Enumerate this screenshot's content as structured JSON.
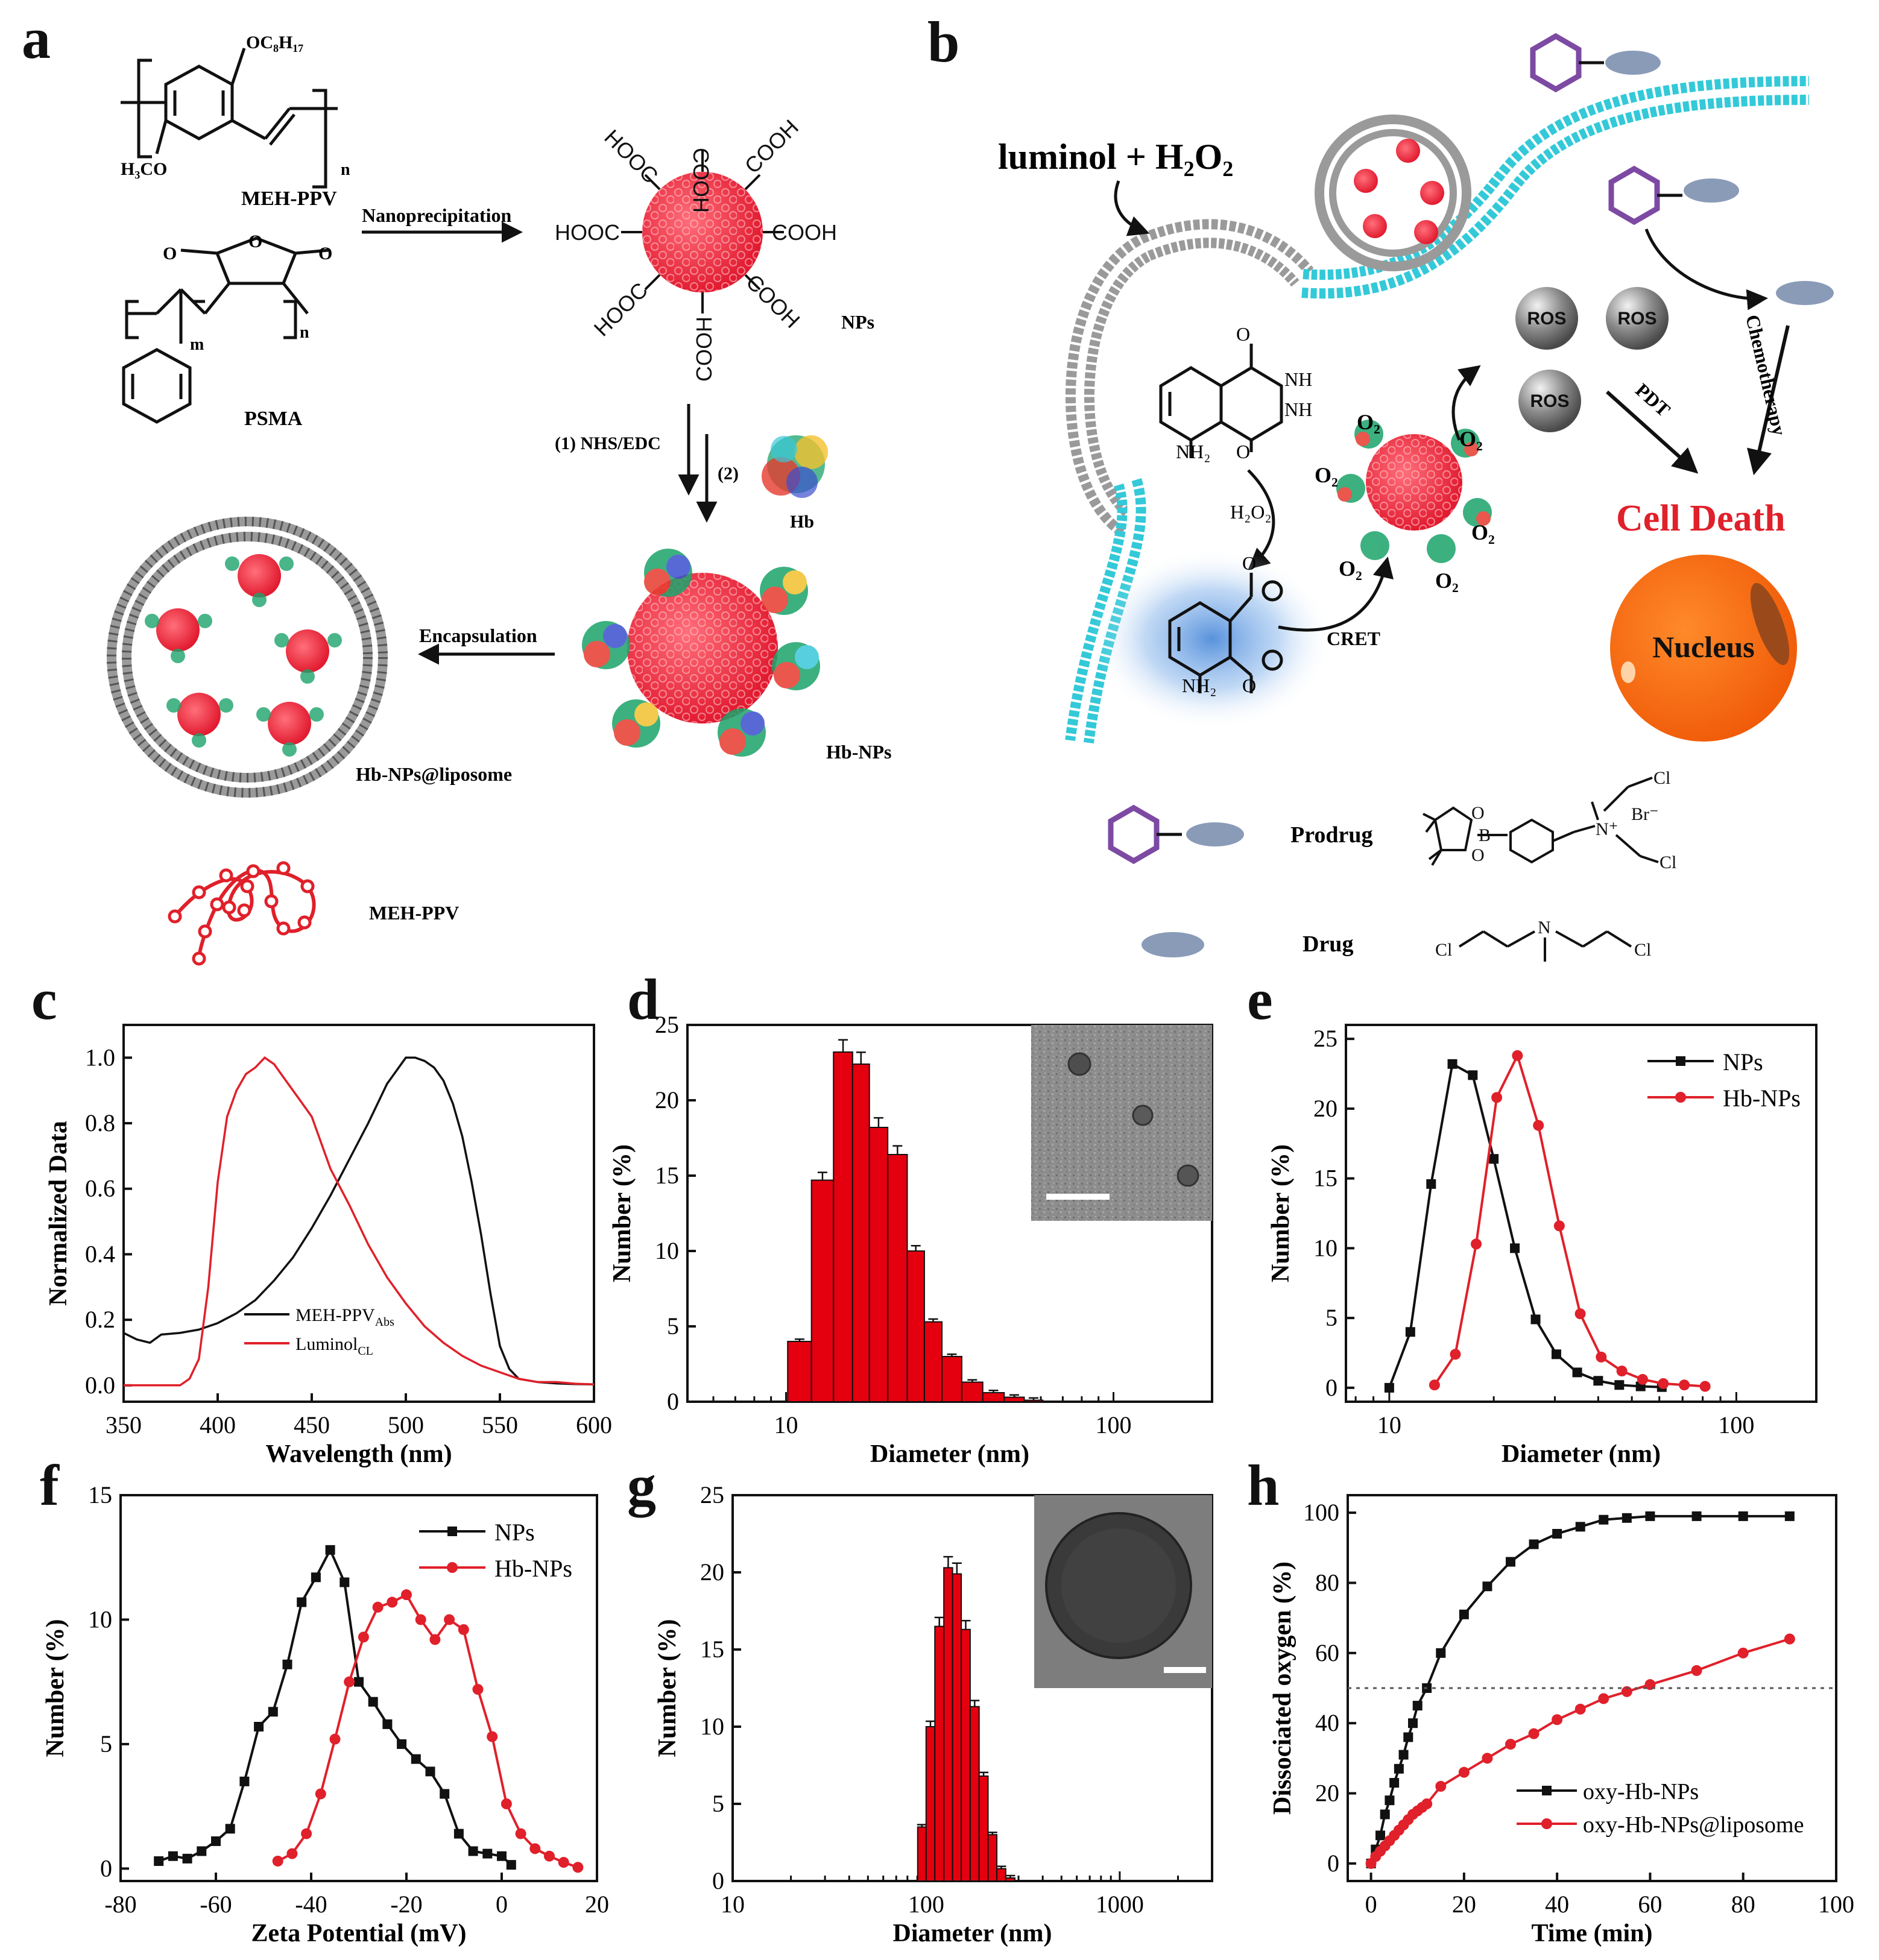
{
  "panel_letters": {
    "a": "a",
    "b": "b",
    "c": "c",
    "d": "d",
    "e": "e",
    "f": "f",
    "g": "g",
    "h": "h"
  },
  "colors": {
    "red": "#e8202a",
    "bar_red": "#e4000f",
    "black": "#111111",
    "cyan": "#33c9d8",
    "orange": "#f26b12",
    "grey": "#9a9a9a",
    "ros": "#7a7a7a",
    "purple": "#7d4aa3",
    "drug": "#8a9bb8",
    "label_red": "#e0202a"
  },
  "panel_a": {
    "meh_ppv_label": "MEH-PPV",
    "oc8h17": "OC₈H₁₇",
    "h3co": "H₃CO",
    "n_sub": "n",
    "m_sub": "m",
    "psma_label": "PSMA",
    "nanoprecipitation": "Nanoprecipitation",
    "cooh": "COOH",
    "hooc": "HOOC",
    "nps_label": "NPs",
    "step1": "(1) NHS/EDC",
    "step2": "(2)",
    "hb_label": "Hb",
    "hb_nps_label": "Hb-NPs",
    "encapsulation": "Encapsulation",
    "liposome_label": "Hb-NPs@liposome",
    "polymer_label": "MEH-PPV"
  },
  "panel_b": {
    "luminol": "luminol + H₂O₂",
    "nh": "NH",
    "nh2": "NH₂",
    "o": "O",
    "h2o2": "H₂O₂",
    "cret": "CRET",
    "o2": "O₂",
    "ros": "ROS",
    "pdt": "PDT",
    "chemo": "Chemotherapy",
    "cell_death": "Cell Death",
    "nucleus": "Nucleus",
    "prodrug": "Prodrug",
    "drug": "Drug",
    "b_atom": "B",
    "n_plus": "N⁺",
    "br_minus": "Br⁻",
    "cl": "Cl",
    "n_atom": "N"
  },
  "chart_data": [
    {
      "panel": "c",
      "type": "line",
      "xlabel": "Wavelength (nm)",
      "ylabel": "Normalized Data",
      "xlim": [
        350,
        600
      ],
      "ylim": [
        -0.05,
        1.1
      ],
      "xticks": [
        350,
        400,
        450,
        500,
        550,
        600
      ],
      "yticks": [
        0.0,
        0.2,
        0.4,
        0.6,
        0.8,
        1.0
      ],
      "legend": {
        "position": "lower-center",
        "entries": [
          "MEH-PPV Abs",
          "Luminol CL"
        ],
        "main": [
          "MEH-PPV",
          "Luminol"
        ],
        "subs": [
          "Abs",
          "CL"
        ]
      },
      "series": [
        {
          "name": "MEH-PPV Abs",
          "color": "#111111",
          "x": [
            350,
            357,
            364,
            370,
            380,
            390,
            400,
            410,
            420,
            430,
            440,
            450,
            460,
            470,
            480,
            490,
            500,
            505,
            510,
            515,
            520,
            525,
            530,
            535,
            540,
            545,
            550,
            555,
            560,
            570,
            580,
            590,
            600
          ],
          "y": [
            0.16,
            0.14,
            0.13,
            0.155,
            0.16,
            0.17,
            0.19,
            0.22,
            0.26,
            0.32,
            0.39,
            0.48,
            0.58,
            0.69,
            0.8,
            0.92,
            1.0,
            1.0,
            0.99,
            0.97,
            0.93,
            0.86,
            0.76,
            0.62,
            0.46,
            0.28,
            0.12,
            0.05,
            0.02,
            0.01,
            0.006,
            0.004,
            0.003
          ]
        },
        {
          "name": "Luminol CL",
          "color": "#e0202a",
          "x": [
            350,
            370,
            380,
            385,
            390,
            395,
            400,
            405,
            410,
            415,
            420,
            425,
            430,
            435,
            440,
            445,
            450,
            455,
            460,
            470,
            480,
            490,
            500,
            510,
            520,
            530,
            540,
            550,
            560,
            570,
            580,
            590,
            600
          ],
          "y": [
            0.0,
            0.0,
            0.0,
            0.02,
            0.08,
            0.3,
            0.62,
            0.82,
            0.9,
            0.95,
            0.97,
            1.0,
            0.98,
            0.94,
            0.9,
            0.86,
            0.82,
            0.74,
            0.66,
            0.55,
            0.43,
            0.33,
            0.25,
            0.18,
            0.13,
            0.09,
            0.06,
            0.04,
            0.02,
            0.01,
            0.01,
            0.005,
            0.003
          ]
        }
      ]
    },
    {
      "panel": "d",
      "type": "bar",
      "xscale": "log",
      "xlabel": "Diameter (nm)",
      "ylabel": "Number (%)",
      "xlim": [
        5,
        200
      ],
      "ylim": [
        0,
        25
      ],
      "xtick_labels": [
        "10",
        "100"
      ],
      "yticks": [
        0,
        5,
        10,
        15,
        20,
        25
      ],
      "bins": [
        11,
        13,
        15,
        17,
        19,
        22,
        25,
        28,
        32,
        37,
        43,
        50,
        57
      ],
      "values": [
        4,
        14.7,
        23.2,
        22.4,
        18.2,
        16.4,
        10,
        5.3,
        3,
        1.3,
        0.6,
        0.3,
        0.1
      ],
      "inset": "TEM image with scale bar"
    },
    {
      "panel": "e",
      "type": "line",
      "xscale": "log",
      "xlabel": "Diameter (nm)",
      "ylabel": "Number (%)",
      "xlim": [
        7.5,
        170
      ],
      "ylim": [
        -1,
        26
      ],
      "xtick_labels": [
        "10",
        "100"
      ],
      "yticks": [
        0,
        5,
        10,
        15,
        20,
        25
      ],
      "legend": {
        "position": "top-right",
        "entries": [
          "NPs",
          "Hb-NPs"
        ]
      },
      "series": [
        {
          "name": "NPs",
          "color": "#111111",
          "marker": "square",
          "x": [
            10,
            11.5,
            13.2,
            15.2,
            17.4,
            20,
            23,
            26.4,
            30.3,
            34.8,
            40,
            46,
            53,
            61
          ],
          "y": [
            0,
            4,
            14.6,
            23.2,
            22.4,
            16.4,
            10,
            4.9,
            2.4,
            1.1,
            0.5,
            0.2,
            0.1,
            0.05
          ]
        },
        {
          "name": "Hb-NPs",
          "color": "#e0202a",
          "marker": "circle",
          "x": [
            13.5,
            15.5,
            17.8,
            20.4,
            23.4,
            26.9,
            30.9,
            35.5,
            40.8,
            46.8,
            53.7,
            61.6,
            70.8,
            81.3
          ],
          "y": [
            0.2,
            2.4,
            10.3,
            20.8,
            23.8,
            18.8,
            11.6,
            5.3,
            2.2,
            1.2,
            0.6,
            0.3,
            0.2,
            0.1
          ]
        }
      ]
    },
    {
      "panel": "f",
      "type": "line",
      "xlabel": "Zeta Potential (mV)",
      "ylabel": "Number (%)",
      "xlim": [
        -80,
        20
      ],
      "ylim": [
        -0.5,
        15
      ],
      "xticks": [
        -80,
        -60,
        -40,
        -20,
        0,
        20
      ],
      "yticks": [
        0,
        5,
        10,
        15
      ],
      "legend": {
        "position": "top-right",
        "entries": [
          "NPs",
          "Hb-NPs"
        ]
      },
      "series": [
        {
          "name": "NPs",
          "color": "#111111",
          "marker": "square",
          "x": [
            -72,
            -69,
            -66,
            -63,
            -60,
            -57,
            -54,
            -51,
            -48,
            -45,
            -42,
            -39,
            -36,
            -33,
            -30,
            -27,
            -24,
            -21,
            -18,
            -15,
            -12,
            -9,
            -6,
            -3,
            0,
            2
          ],
          "y": [
            0.3,
            0.5,
            0.4,
            0.7,
            1.1,
            1.6,
            3.5,
            5.7,
            6.3,
            8.2,
            10.7,
            11.7,
            12.8,
            11.5,
            7.5,
            6.7,
            5.8,
            5.0,
            4.4,
            3.9,
            3.0,
            1.4,
            0.7,
            0.6,
            0.5,
            0.15
          ]
        },
        {
          "name": "Hb-NPs",
          "color": "#e0202a",
          "marker": "circle",
          "x": [
            -47,
            -44,
            -41,
            -38,
            -35,
            -32,
            -29,
            -26,
            -23,
            -20,
            -17,
            -14,
            -11,
            -8,
            -5,
            -2,
            1,
            4,
            7,
            10,
            13,
            16
          ],
          "y": [
            0.3,
            0.6,
            1.4,
            3.0,
            5.2,
            7.5,
            9.3,
            10.5,
            10.7,
            11.0,
            10.0,
            9.2,
            10.0,
            9.6,
            7.2,
            5.3,
            2.6,
            1.4,
            0.8,
            0.5,
            0.25,
            0.05
          ]
        }
      ]
    },
    {
      "panel": "g",
      "type": "bar",
      "xscale": "log",
      "xlabel": "Diameter (nm)",
      "ylabel": "Number (%)",
      "xlim": [
        10,
        3000
      ],
      "ylim": [
        0,
        25
      ],
      "xtick_labels": [
        "10",
        "100",
        "1000"
      ],
      "yticks": [
        0,
        5,
        10,
        15,
        20,
        25
      ],
      "bins": [
        95,
        105,
        117,
        130,
        144,
        160,
        178,
        198,
        220,
        244,
        272
      ],
      "values": [
        3.5,
        10,
        16.5,
        20.3,
        19.9,
        16.3,
        11.3,
        6.8,
        3,
        0.8,
        0.2
      ],
      "inset": "TEM image with scale bar"
    },
    {
      "panel": "h",
      "type": "line",
      "xlabel": "Time (min)",
      "ylabel": "Dissociated oxygen (%)",
      "xlim": [
        -5,
        100
      ],
      "ylim": [
        -5,
        105
      ],
      "xticks": [
        0,
        20,
        40,
        60,
        80,
        100
      ],
      "yticks": [
        0,
        20,
        40,
        60,
        80,
        100
      ],
      "reference_line": 50,
      "legend": {
        "position": "bottom-right",
        "entries": [
          "oxy-Hb-NPs",
          "oxy-Hb-NPs@liposome"
        ]
      },
      "series": [
        {
          "name": "oxy-Hb-NPs",
          "color": "#111111",
          "marker": "square",
          "x": [
            0,
            1,
            2,
            3,
            4,
            5,
            6,
            7,
            8,
            9,
            10,
            12,
            15,
            20,
            25,
            30,
            35,
            40,
            45,
            50,
            55,
            60,
            70,
            80,
            90
          ],
          "y": [
            0,
            4,
            8,
            14,
            18,
            23,
            27,
            31,
            36,
            40,
            45,
            50,
            60,
            71,
            79,
            86,
            91,
            94,
            96,
            98,
            98.5,
            99,
            99,
            99,
            99
          ]
        },
        {
          "name": "oxy-Hb-NPs@liposome",
          "color": "#e0202a",
          "marker": "circle",
          "x": [
            0,
            1,
            2,
            3,
            4,
            5,
            6,
            7,
            8,
            9,
            10,
            11,
            12,
            15,
            20,
            25,
            30,
            35,
            40,
            45,
            50,
            55,
            60,
            70,
            80,
            90
          ],
          "y": [
            0,
            2,
            3.5,
            5,
            6.5,
            8,
            9.5,
            11,
            12.5,
            14,
            15,
            16,
            17,
            22,
            26,
            30,
            34,
            37,
            41,
            44,
            47,
            49,
            51,
            55,
            60,
            64
          ]
        }
      ]
    }
  ]
}
